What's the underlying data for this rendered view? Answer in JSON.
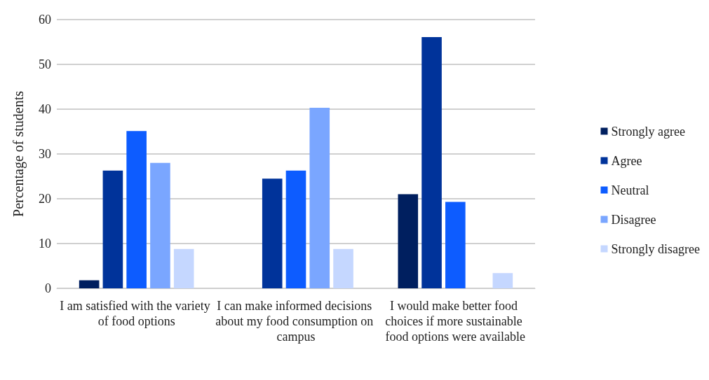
{
  "chart_data": {
    "type": "bar",
    "ylabel": "Percentage of students",
    "categories": [
      "I am satisfied with the variety of food options",
      "I can make informed decisions about my food consumption on campus",
      "I would make better food choices if more sustainable food options were available"
    ],
    "series": [
      {
        "name": "Strongly agree",
        "color": "#001f5f",
        "values": [
          1.8,
          0,
          21.0
        ]
      },
      {
        "name": "Agree",
        "color": "#00339a",
        "values": [
          26.3,
          24.5,
          56.1
        ]
      },
      {
        "name": "Neutral",
        "color": "#0d5cff",
        "values": [
          35.1,
          26.3,
          19.3
        ]
      },
      {
        "name": "Disagree",
        "color": "#7aa6ff",
        "values": [
          28.0,
          40.3,
          0
        ]
      },
      {
        "name": "Strongly disagree",
        "color": "#c5d7ff",
        "values": [
          8.8,
          8.8,
          3.4
        ]
      }
    ],
    "ylim": [
      0,
      60
    ],
    "yticks": [
      0,
      10,
      20,
      30,
      40,
      50,
      60
    ],
    "grid": "y",
    "legend": "right"
  }
}
